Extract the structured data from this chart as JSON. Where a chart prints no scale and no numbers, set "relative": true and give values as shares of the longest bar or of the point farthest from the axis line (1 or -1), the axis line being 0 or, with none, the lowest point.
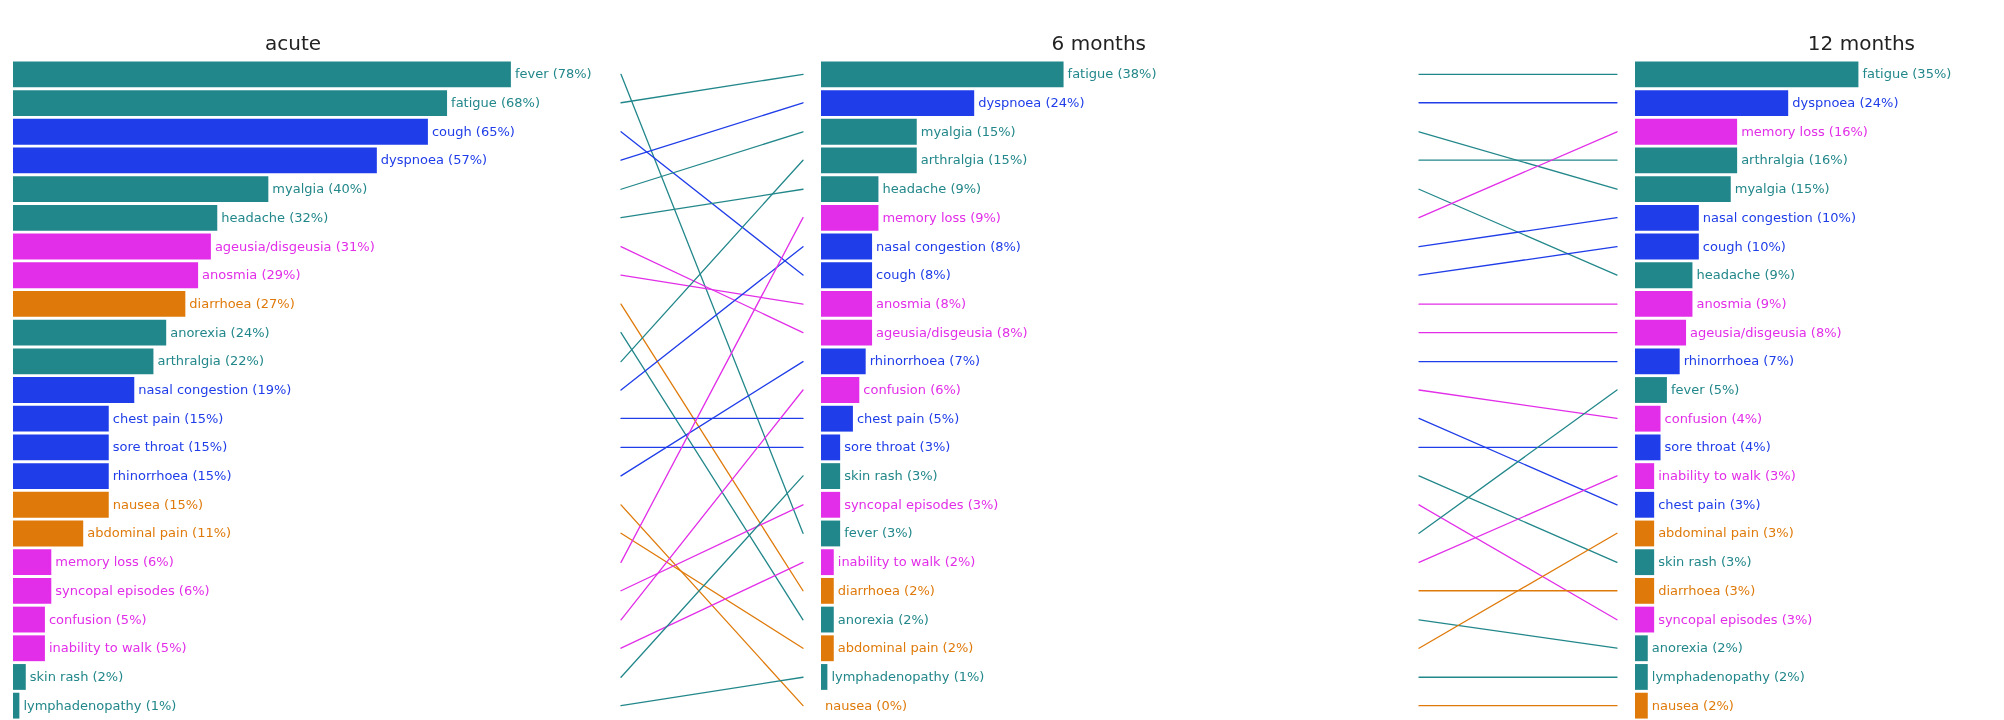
{
  "chart_data": [
    {
      "type": "bar",
      "orientation": "horizontal",
      "title": "acute",
      "tick_labels": false,
      "categories": [
        null,
        null,
        null,
        null,
        null,
        null,
        null,
        null,
        null,
        null,
        null,
        null,
        null,
        null,
        null,
        null,
        null,
        null,
        null,
        null,
        null,
        null,
        null
      ],
      "values": [
        78,
        68,
        65,
        57,
        40,
        32,
        31,
        29,
        27,
        24,
        22,
        19,
        15,
        15,
        15,
        15,
        11,
        6,
        6,
        5,
        5,
        2,
        1
      ],
      "value_labels": [
        "fever (78%)",
        "fatigue (68%)",
        "cough (65%)",
        "dyspnoea (57%)",
        "myalgia (40%)",
        "headache (32%)",
        "ageusia/disgeusia (31%)",
        "anosmia (29%)",
        "diarrhoea (27%)",
        "anorexia (24%)",
        "arthralgia (22%)",
        "nasal congestion (19%)",
        "chest pain (15%)",
        "sore throat (15%)",
        "rhinorrhoea (15%)",
        "nausea (15%)",
        "abdominal pain (11%)",
        "memory loss (6%)",
        "syncopal episodes (6%)",
        "confusion (5%)",
        "inability to walk (5%)",
        "skin rash (2%)",
        "lymphadenopathy (1%)"
      ],
      "colors": [
        "#22878a",
        "#22878a",
        "#1f3de8",
        "#1f3de8",
        "#22878a",
        "#22878a",
        "#e22ee8",
        "#e22ee8",
        "#df7a0a",
        "#22878a",
        "#22878a",
        "#1f3de8",
        "#1f3de8",
        "#1f3de8",
        "#1f3de8",
        "#df7a0a",
        "#df7a0a",
        "#e22ee8",
        "#e22ee8",
        "#e22ee8",
        "#e22ee8",
        "#22878a",
        "#22878a"
      ]
    },
    {
      "type": "line",
      "relative": true,
      "categories": [
        null,
        null
      ],
      "series": [
        {
          "color": "#22878a",
          "values": [
            1,
            0.273
          ]
        },
        {
          "color": "#22878a",
          "values": [
            0.955,
            1
          ]
        },
        {
          "color": "#1f3de8",
          "values": [
            0.909,
            0.682
          ]
        },
        {
          "color": "#1f3de8",
          "values": [
            0.864,
            0.955
          ]
        },
        {
          "color": "#22878a",
          "values": [
            0.818,
            0.909
          ]
        },
        {
          "color": "#22878a",
          "values": [
            0.773,
            0.818
          ]
        },
        {
          "color": "#e22ee8",
          "values": [
            0.727,
            0.591
          ]
        },
        {
          "color": "#e22ee8",
          "values": [
            0.682,
            0.636
          ]
        },
        {
          "color": "#df7a0a",
          "values": [
            0.636,
            0.182
          ]
        },
        {
          "color": "#22878a",
          "values": [
            0.591,
            0.136
          ]
        },
        {
          "color": "#22878a",
          "values": [
            0.545,
            0.864
          ]
        },
        {
          "color": "#1f3de8",
          "values": [
            0.5,
            0.727
          ]
        },
        {
          "color": "#1f3de8",
          "values": [
            0.455,
            0.455
          ]
        },
        {
          "color": "#1f3de8",
          "values": [
            0.409,
            0.409
          ]
        },
        {
          "color": "#1f3de8",
          "values": [
            0.364,
            0.545
          ]
        },
        {
          "color": "#df7a0a",
          "values": [
            0.318,
            0
          ]
        },
        {
          "color": "#df7a0a",
          "values": [
            0.273,
            0.091
          ]
        },
        {
          "color": "#e22ee8",
          "values": [
            0.227,
            0.773
          ]
        },
        {
          "color": "#e22ee8",
          "values": [
            0.182,
            0.318
          ]
        },
        {
          "color": "#e22ee8",
          "values": [
            0.136,
            0.5
          ]
        },
        {
          "color": "#e22ee8",
          "values": [
            0.091,
            0.227
          ]
        },
        {
          "color": "#22878a",
          "values": [
            0.045,
            0.364
          ]
        },
        {
          "color": "#22878a",
          "values": [
            0,
            0.045
          ]
        }
      ]
    },
    {
      "type": "bar",
      "orientation": "horizontal",
      "title": "6 months",
      "tick_labels": false,
      "categories": [
        null,
        null,
        null,
        null,
        null,
        null,
        null,
        null,
        null,
        null,
        null,
        null,
        null,
        null,
        null,
        null,
        null,
        null,
        null,
        null,
        null,
        null,
        null
      ],
      "values": [
        38,
        24,
        15,
        15,
        9,
        9,
        8,
        8,
        8,
        8,
        7,
        6,
        5,
        3,
        3,
        3,
        3,
        2,
        2,
        2,
        2,
        1,
        0
      ],
      "value_labels": [
        "fatigue (38%)",
        "dyspnoea (24%)",
        "myalgia (15%)",
        "arthralgia (15%)",
        "headache (9%)",
        "memory loss (9%)",
        "nasal congestion (8%)",
        "cough (8%)",
        "anosmia (8%)",
        "ageusia/disgeusia (8%)",
        "rhinorrhoea (7%)",
        "confusion (6%)",
        "chest pain (5%)",
        "sore throat (3%)",
        "skin rash (3%)",
        "syncopal episodes (3%)",
        "fever (3%)",
        "inability to walk (2%)",
        "diarrhoea (2%)",
        "anorexia (2%)",
        "abdominal pain (2%)",
        "lymphadenopathy (1%)",
        "nausea (0%)"
      ],
      "colors": [
        "#22878a",
        "#1f3de8",
        "#22878a",
        "#22878a",
        "#22878a",
        "#e22ee8",
        "#1f3de8",
        "#1f3de8",
        "#e22ee8",
        "#e22ee8",
        "#1f3de8",
        "#e22ee8",
        "#1f3de8",
        "#1f3de8",
        "#22878a",
        "#e22ee8",
        "#22878a",
        "#e22ee8",
        "#df7a0a",
        "#22878a",
        "#df7a0a",
        "#22878a",
        "#df7a0a"
      ]
    },
    {
      "type": "line",
      "relative": true,
      "categories": [
        null,
        null
      ],
      "series": [
        {
          "color": "#22878a",
          "values": [
            1,
            1
          ]
        },
        {
          "color": "#1f3de8",
          "values": [
            0.955,
            0.955
          ]
        },
        {
          "color": "#22878a",
          "values": [
            0.909,
            0.818
          ]
        },
        {
          "color": "#22878a",
          "values": [
            0.864,
            0.864
          ]
        },
        {
          "color": "#22878a",
          "values": [
            0.818,
            0.682
          ]
        },
        {
          "color": "#e22ee8",
          "values": [
            0.773,
            0.909
          ]
        },
        {
          "color": "#1f3de8",
          "values": [
            0.727,
            0.773
          ]
        },
        {
          "color": "#1f3de8",
          "values": [
            0.682,
            0.727
          ]
        },
        {
          "color": "#e22ee8",
          "values": [
            0.636,
            0.636
          ]
        },
        {
          "color": "#e22ee8",
          "values": [
            0.591,
            0.591
          ]
        },
        {
          "color": "#1f3de8",
          "values": [
            0.545,
            0.545
          ]
        },
        {
          "color": "#e22ee8",
          "values": [
            0.5,
            0.455
          ]
        },
        {
          "color": "#1f3de8",
          "values": [
            0.455,
            0.318
          ]
        },
        {
          "color": "#1f3de8",
          "values": [
            0.409,
            0.409
          ]
        },
        {
          "color": "#22878a",
          "values": [
            0.364,
            0.227
          ]
        },
        {
          "color": "#e22ee8",
          "values": [
            0.318,
            0.136
          ]
        },
        {
          "color": "#22878a",
          "values": [
            0.273,
            0.5
          ]
        },
        {
          "color": "#e22ee8",
          "values": [
            0.227,
            0.364
          ]
        },
        {
          "color": "#df7a0a",
          "values": [
            0.182,
            0.182
          ]
        },
        {
          "color": "#22878a",
          "values": [
            0.136,
            0.091
          ]
        },
        {
          "color": "#df7a0a",
          "values": [
            0.091,
            0.273
          ]
        },
        {
          "color": "#22878a",
          "values": [
            0.045,
            0.045
          ]
        },
        {
          "color": "#df7a0a",
          "values": [
            0,
            0
          ]
        }
      ]
    },
    {
      "type": "bar",
      "orientation": "horizontal",
      "title": "12 months",
      "tick_labels": false,
      "categories": [
        null,
        null,
        null,
        null,
        null,
        null,
        null,
        null,
        null,
        null,
        null,
        null,
        null,
        null,
        null,
        null,
        null,
        null,
        null,
        null,
        null,
        null,
        null
      ],
      "values": [
        35,
        24,
        16,
        16,
        15,
        10,
        10,
        9,
        9,
        8,
        7,
        5,
        4,
        4,
        3,
        3,
        3,
        3,
        3,
        3,
        2,
        2,
        2
      ],
      "value_labels": [
        "fatigue (35%)",
        "dyspnoea (24%)",
        "memory loss (16%)",
        "arthralgia (16%)",
        "myalgia (15%)",
        "nasal congestion (10%)",
        "cough (10%)",
        "headache (9%)",
        "anosmia (9%)",
        "ageusia/disgeusia (8%)",
        "rhinorrhoea (7%)",
        "fever (5%)",
        "confusion (4%)",
        "sore throat (4%)",
        "inability to walk (3%)",
        "chest pain (3%)",
        "abdominal pain (3%)",
        "skin rash (3%)",
        "diarrhoea (3%)",
        "syncopal episodes (3%)",
        "anorexia (2%)",
        "lymphadenopathy (2%)",
        "nausea (2%)"
      ],
      "colors": [
        "#22878a",
        "#1f3de8",
        "#e22ee8",
        "#22878a",
        "#22878a",
        "#1f3de8",
        "#1f3de8",
        "#22878a",
        "#e22ee8",
        "#e22ee8",
        "#1f3de8",
        "#22878a",
        "#e22ee8",
        "#1f3de8",
        "#e22ee8",
        "#1f3de8",
        "#df7a0a",
        "#22878a",
        "#df7a0a",
        "#e22ee8",
        "#22878a",
        "#22878a",
        "#df7a0a"
      ]
    }
  ]
}
